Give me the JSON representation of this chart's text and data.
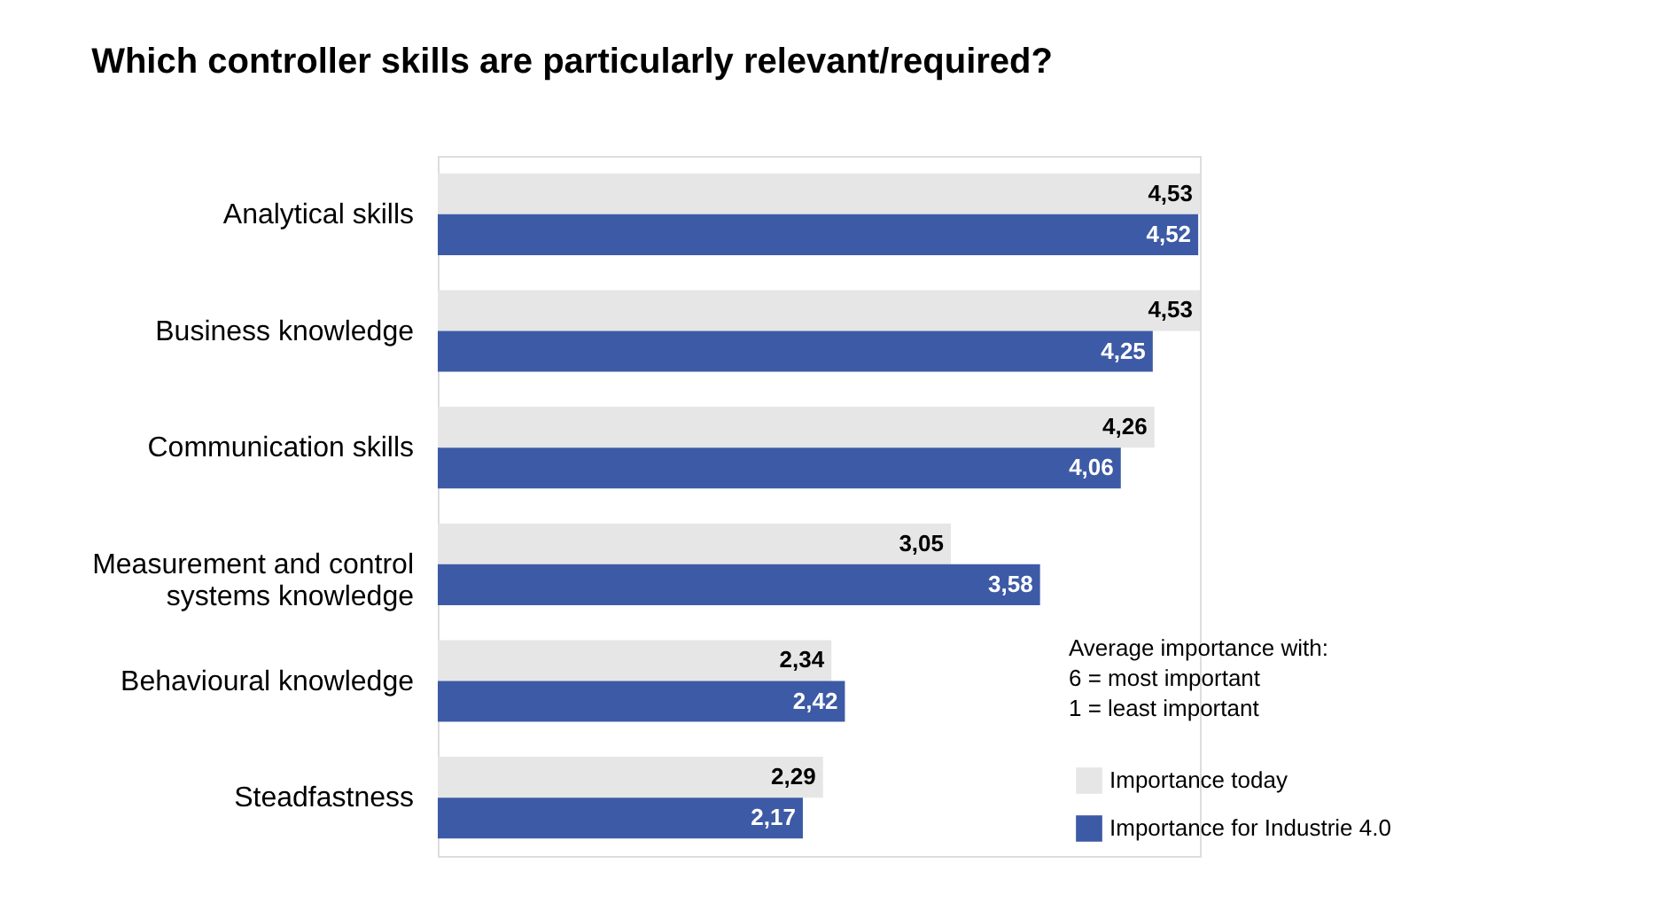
{
  "chart_data": {
    "type": "bar",
    "orientation": "horizontal",
    "title": "Which controller skills are particularly relevant/required?",
    "categories": [
      "Analytical skills",
      "Business knowledge",
      "Communication skills",
      "Measurement and control systems knowledge",
      "Behavioural knowledge",
      "Steadfastness"
    ],
    "series": [
      {
        "name": "Importance today",
        "color": "#e6e6e6",
        "values": [
          4.53,
          4.53,
          4.26,
          3.05,
          2.34,
          2.29
        ],
        "value_labels": [
          "4,53",
          "4,53",
          "4,26",
          "3,05",
          "2,34",
          "2,29"
        ]
      },
      {
        "name": "Importance for Industrie 4.0",
        "color": "#3d5aa6",
        "values": [
          4.52,
          4.25,
          4.06,
          3.58,
          2.42,
          2.17
        ],
        "value_labels": [
          "4,52",
          "4,25",
          "4,06",
          "3,58",
          "2,42",
          "2,17"
        ]
      }
    ],
    "legend": "bottom right",
    "annotations": [
      "Average importance with:",
      "6 = most important",
      "1 = least important"
    ]
  }
}
